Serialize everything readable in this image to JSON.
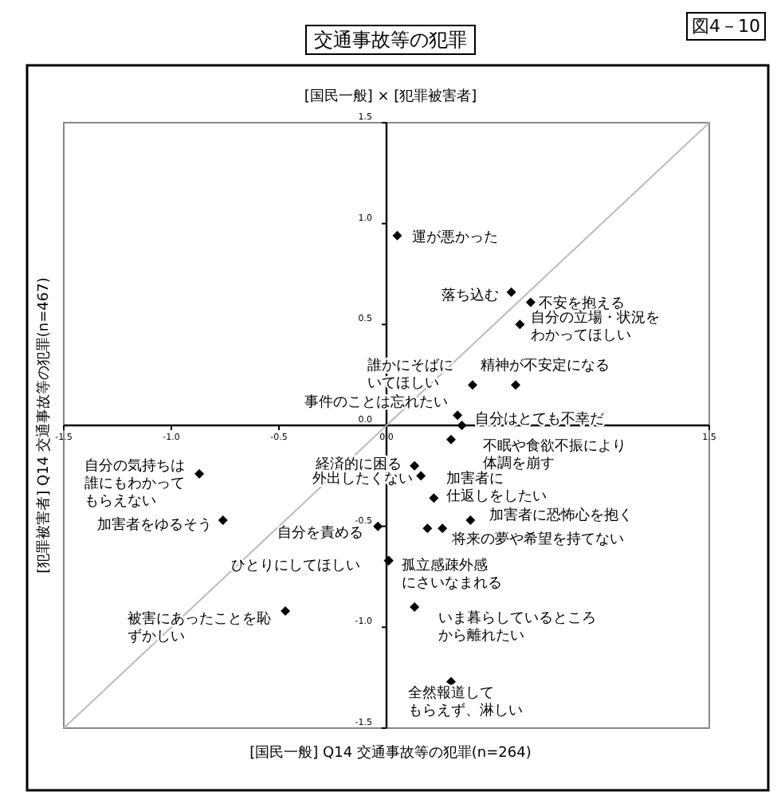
{
  "chart_data": {
    "type": "scatter",
    "title": "交通事故等の犯罪",
    "subtitle": "[国民一般] × [犯罪被害者]",
    "xlabel": "[国民一般] Q14 交通事故等の犯罪(n=264)",
    "ylabel": "[犯罪被害者] Q14 交通事故等の犯罪(n=467)",
    "xlim": [
      -1.5,
      1.5
    ],
    "ylim": [
      -1.5,
      1.5
    ],
    "xticks": [
      {
        "value": -1.5,
        "label": "-1.5"
      },
      {
        "value": -1.0,
        "label": "-1.0"
      },
      {
        "value": -0.5,
        "label": "-0.5"
      },
      {
        "value": 0,
        "label": "0.0"
      },
      {
        "value": 1.5,
        "label": "1.5"
      }
    ],
    "yticks": [
      {
        "value": 1.5,
        "label": "1.5"
      },
      {
        "value": 1.0,
        "label": "1.0"
      },
      {
        "value": 0.5,
        "label": "0.5"
      },
      {
        "value": 0,
        "label": "0.0"
      },
      {
        "value": -0.5,
        "label": "-0.5"
      },
      {
        "value": -1.0,
        "label": "-1.0"
      },
      {
        "value": -1.5,
        "label": "-1.5"
      }
    ],
    "series": [
      {
        "type": "line",
        "marker": "none",
        "color": "#bbbbbb",
        "x": [
          -1.5,
          1.5
        ],
        "values": [
          -1.5,
          1.5
        ]
      },
      {
        "marker": "diamond",
        "color": "#000000",
        "x": [
          0.05,
          0.58,
          0.67,
          0.62,
          0.4,
          0.6,
          0.33,
          0.35,
          0.3,
          0.13,
          0.16,
          0.22,
          0.39,
          0.19,
          0.26,
          0.01,
          -0.04,
          0.13,
          0.3,
          -0.47,
          -0.76,
          -0.87,
          0.01
        ],
        "values": [
          0.94,
          0.66,
          0.61,
          0.5,
          0.2,
          0.2,
          0.05,
          0.0,
          -0.07,
          -0.2,
          -0.25,
          -0.36,
          -0.47,
          -0.51,
          -0.51,
          -0.67,
          -0.5,
          -0.9,
          -1.27,
          -0.92,
          -0.47,
          -0.24,
          -0.67
        ],
        "value_labels": [
          "運が悪かった",
          "落ち込む",
          "不安を抱える",
          "自分の立場・状況をわかってほしい",
          "誰かにそばにいてほしい",
          "精神が不安定になる",
          "事件のことは忘れたい",
          "自分はとても不幸だ",
          "不眠や食欲不振により体調を崩す",
          "経済的に困る",
          "外出したくない",
          "加害者に仕返しをしたい",
          "加害者に恐怖心を抱く",
          null,
          "将来の夢や希望を持てない",
          "ひとりにしてほしい",
          "自分を責める",
          "いま暮らしているところから離れたい",
          "全然報道してもらえず、淋しい",
          "被害にあったことを恥ずかしい",
          "加害者をゆるそう",
          "自分の気持ちは誰にもわかってもらえない",
          "孤立感疎外感にさいなまれる"
        ]
      }
    ],
    "annotations": [
      "図4－10"
    ]
  }
}
